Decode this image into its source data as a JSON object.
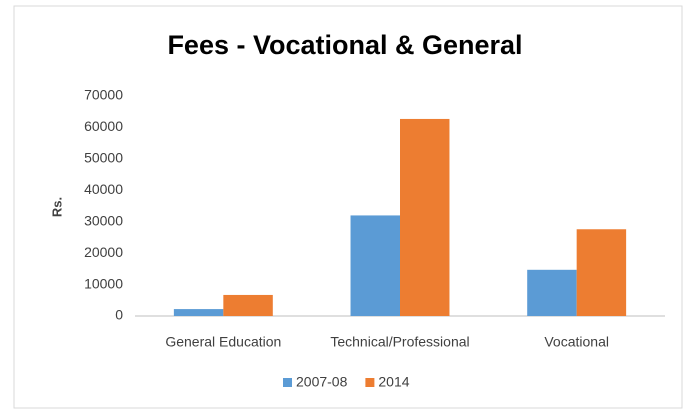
{
  "chart_data": {
    "type": "bar",
    "title": "Fees - Vocational & General",
    "y_label": "Rs.",
    "categories": [
      "General Education",
      "Technical/Professional",
      "Vocational"
    ],
    "series": [
      {
        "name": "2007-08",
        "color": "#5b9bd5",
        "values": [
          2200,
          32000,
          14700
        ]
      },
      {
        "name": "2014",
        "color": "#ed7d31",
        "values": [
          6700,
          62700,
          27600
        ]
      }
    ],
    "ylim": [
      0,
      70000
    ],
    "yticks": [
      0,
      10000,
      20000,
      30000,
      40000,
      50000,
      60000,
      70000
    ],
    "grid": false,
    "legend": "bottom"
  }
}
